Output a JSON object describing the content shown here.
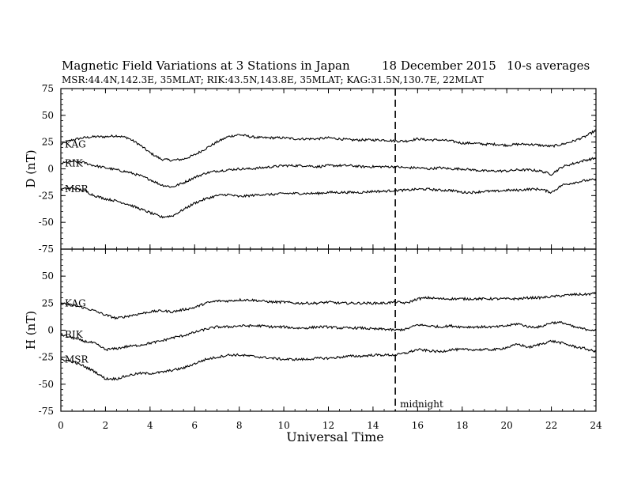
{
  "chart_data": {
    "type": "line",
    "title": "Magnetic Field Variations at 3 Stations in Japan",
    "date": "18 December 2015",
    "averaging": "10-s averages",
    "subtitle": "MSR:44.4N,142.3E, 35MLAT;  RIK:43.5N,143.8E, 35MLAT;  KAG:31.5N,130.7E, 22MLAT",
    "xlabel": "Universal Time",
    "xlim": [
      0,
      24
    ],
    "xticks": [
      "0",
      "2",
      "4",
      "6",
      "8",
      "10",
      "12",
      "14",
      "16",
      "18",
      "20",
      "22",
      "24"
    ],
    "annotation": {
      "x": 15,
      "label": "midnight",
      "line": "dashed"
    },
    "panels": [
      {
        "ylabel": "D (nT)",
        "ylim": [
          -75,
          75
        ],
        "yticks": [
          "75",
          "50",
          "25",
          "0",
          "-25",
          "-50",
          "-75"
        ],
        "series": [
          {
            "name": "KAG",
            "x": [
              0,
              0.5,
              1,
              1.5,
              2,
              2.5,
              3,
              3.5,
              4,
              4.5,
              5,
              5.5,
              6,
              6.5,
              7,
              7.5,
              8,
              8.5,
              9,
              9.5,
              10,
              10.5,
              11,
              11.5,
              12,
              12.5,
              13,
              13.5,
              14,
              14.5,
              15,
              15.5,
              16,
              16.5,
              17,
              17.5,
              18,
              18.5,
              19,
              19.5,
              20,
              20.5,
              21,
              21.5,
              22,
              22.5,
              23,
              23.5,
              24
            ],
            "y": [
              23,
              27,
              29,
              30,
              30,
              31,
              29,
              23,
              15,
              9,
              8,
              9,
              13,
              19,
              25,
              30,
              32,
              30,
              29,
              29,
              29,
              28,
              28,
              28,
              29,
              28,
              27,
              27,
              27,
              27,
              26,
              26,
              28,
              27,
              27,
              26,
              24,
              24,
              23,
              23,
              22,
              23,
              23,
              22,
              21,
              23,
              26,
              30,
              36
            ]
          },
          {
            "name": "RIK",
            "x": [
              0,
              0.5,
              1,
              1.5,
              2,
              2.5,
              3,
              3.5,
              4,
              4.5,
              5,
              5.5,
              6,
              6.5,
              7,
              7.5,
              8,
              8.5,
              9,
              9.5,
              10,
              10.5,
              11,
              11.5,
              12,
              12.5,
              13,
              13.5,
              14,
              14.5,
              15,
              15.5,
              16,
              16.5,
              17,
              17.5,
              18,
              18.5,
              19,
              19.5,
              20,
              20.5,
              21,
              21.5,
              22,
              22.5,
              23,
              23.5,
              24
            ],
            "y": [
              5,
              7,
              6,
              3,
              1,
              -1,
              -3,
              -6,
              -10,
              -15,
              -17,
              -13,
              -8,
              -4,
              -2,
              -1,
              0,
              0,
              1,
              2,
              3,
              3,
              3,
              2,
              3,
              3,
              3,
              2,
              2,
              2,
              2,
              1,
              1,
              0,
              1,
              0,
              0,
              -1,
              -2,
              -2,
              -2,
              -1,
              -1,
              -2,
              -5,
              2,
              5,
              8,
              10
            ]
          },
          {
            "name": "MSR",
            "x": [
              0,
              0.5,
              1,
              1.5,
              2,
              2.5,
              3,
              3.5,
              4,
              4.5,
              5,
              5.5,
              6,
              6.5,
              7,
              7.5,
              8,
              8.5,
              9,
              9.5,
              10,
              10.5,
              11,
              11.5,
              12,
              12.5,
              13,
              13.5,
              14,
              14.5,
              15,
              15.5,
              16,
              16.5,
              17,
              17.5,
              18,
              18.5,
              19,
              19.5,
              20,
              20.5,
              21,
              21.5,
              22,
              22.5,
              23,
              23.5,
              24
            ],
            "y": [
              -19,
              -18,
              -20,
              -25,
              -28,
              -30,
              -33,
              -37,
              -41,
              -45,
              -44,
              -38,
              -32,
              -28,
              -25,
              -24,
              -26,
              -25,
              -24,
              -24,
              -23,
              -23,
              -23,
              -23,
              -22,
              -22,
              -22,
              -22,
              -21,
              -21,
              -20,
              -20,
              -19,
              -19,
              -20,
              -20,
              -22,
              -22,
              -21,
              -21,
              -20,
              -20,
              -19,
              -19,
              -22,
              -15,
              -13,
              -11,
              -10
            ]
          }
        ]
      },
      {
        "ylabel": "H (nT)",
        "ylim": [
          -75,
          75
        ],
        "yticks": [
          "",
          "50",
          "25",
          "0",
          "-25",
          "-50",
          "-75"
        ],
        "series": [
          {
            "name": "KAG",
            "x": [
              0,
              0.5,
              1,
              1.5,
              2,
              2.5,
              3,
              3.5,
              4,
              4.5,
              5,
              5.5,
              6,
              6.5,
              7,
              7.5,
              8,
              8.5,
              9,
              9.5,
              10,
              10.5,
              11,
              11.5,
              12,
              12.5,
              13,
              13.5,
              14,
              14.5,
              15,
              15.5,
              16,
              16.5,
              17,
              17.5,
              18,
              18.5,
              19,
              19.5,
              20,
              20.5,
              21,
              21.5,
              22,
              22.5,
              23,
              23.5,
              24
            ],
            "y": [
              25,
              23,
              21,
              18,
              14,
              11,
              13,
              15,
              17,
              18,
              17,
              19,
              21,
              25,
              27,
              27,
              28,
              28,
              27,
              26,
              26,
              25,
              25,
              25,
              26,
              25,
              25,
              25,
              25,
              25,
              26,
              25,
              29,
              30,
              29,
              29,
              29,
              29,
              29,
              29,
              29,
              29,
              30,
              30,
              31,
              32,
              33,
              33,
              34
            ]
          },
          {
            "name": "RIK",
            "x": [
              0,
              0.5,
              1,
              1.5,
              2,
              2.5,
              3,
              3.5,
              4,
              4.5,
              5,
              5.5,
              6,
              6.5,
              7,
              7.5,
              8,
              8.5,
              9,
              9.5,
              10,
              10.5,
              11,
              11.5,
              12,
              12.5,
              13,
              13.5,
              14,
              14.5,
              15,
              15.5,
              16,
              16.5,
              17,
              17.5,
              18,
              18.5,
              19,
              19.5,
              20,
              20.5,
              21,
              21.5,
              22,
              22.5,
              23,
              23.5,
              24
            ],
            "y": [
              -4,
              -7,
              -10,
              -12,
              -18,
              -17,
              -15,
              -14,
              -12,
              -10,
              -7,
              -5,
              -2,
              1,
              3,
              3,
              4,
              4,
              4,
              3,
              3,
              2,
              2,
              3,
              3,
              2,
              2,
              2,
              1,
              1,
              0,
              1,
              5,
              4,
              3,
              4,
              3,
              3,
              3,
              3,
              4,
              6,
              3,
              3,
              7,
              7,
              3,
              1,
              0
            ]
          },
          {
            "name": "MSR",
            "x": [
              0,
              0.5,
              1,
              1.5,
              2,
              2.5,
              3,
              3.5,
              4,
              4.5,
              5,
              5.5,
              6,
              6.5,
              7,
              7.5,
              8,
              8.5,
              9,
              9.5,
              10,
              10.5,
              11,
              11.5,
              12,
              12.5,
              13,
              13.5,
              14,
              14.5,
              15,
              15.5,
              16,
              16.5,
              17,
              17.5,
              18,
              18.5,
              19,
              19.5,
              20,
              20.5,
              21,
              21.5,
              22,
              22.5,
              23,
              23.5,
              24
            ],
            "y": [
              -27,
              -29,
              -33,
              -38,
              -45,
              -45,
              -42,
              -40,
              -40,
              -39,
              -37,
              -35,
              -31,
              -27,
              -25,
              -23,
              -23,
              -24,
              -25,
              -26,
              -27,
              -27,
              -27,
              -26,
              -26,
              -25,
              -24,
              -24,
              -23,
              -23,
              -23,
              -21,
              -18,
              -19,
              -20,
              -18,
              -18,
              -18,
              -18,
              -18,
              -16,
              -13,
              -16,
              -13,
              -10,
              -12,
              -15,
              -17,
              -20
            ]
          }
        ]
      }
    ]
  }
}
